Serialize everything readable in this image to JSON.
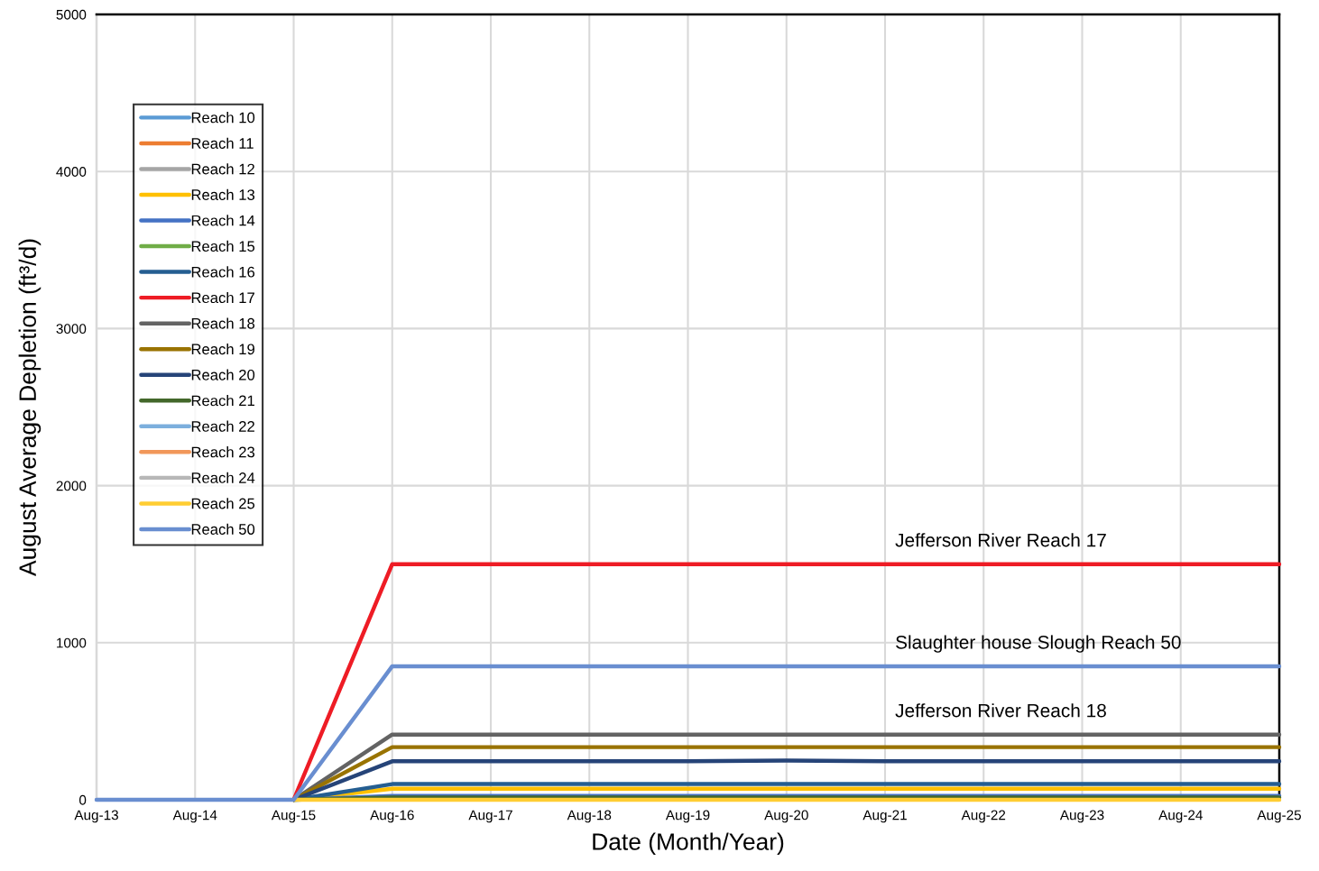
{
  "chart_data": {
    "type": "line",
    "xlabel": "Date (Month/Year)",
    "ylabel": "August Average Depletion (ft³/d)",
    "categories": [
      "Aug-13",
      "Aug-14",
      "Aug-15",
      "Aug-16",
      "Aug-17",
      "Aug-18",
      "Aug-19",
      "Aug-20",
      "Aug-21",
      "Aug-22",
      "Aug-23",
      "Aug-24",
      "Aug-25"
    ],
    "ylim": [
      0,
      5000
    ],
    "yticks": [
      0,
      1000,
      2000,
      3000,
      4000,
      5000
    ],
    "grid": true,
    "legend": "top left",
    "marker": "none",
    "line_style": "solid",
    "series": [
      {
        "name": "Reach 10",
        "color": "#5b9bd5",
        "values": [
          null,
          null,
          null,
          null,
          null,
          null,
          null,
          null,
          null,
          null,
          null,
          null,
          null
        ]
      },
      {
        "name": "Reach 11",
        "color": "#ed7d31",
        "values": [
          null,
          null,
          null,
          null,
          null,
          null,
          null,
          null,
          null,
          null,
          null,
          null,
          null
        ]
      },
      {
        "name": "Reach 12",
        "color": "#a5a5a5",
        "values": [
          null,
          null,
          null,
          null,
          null,
          null,
          null,
          null,
          null,
          null,
          null,
          null,
          null
        ]
      },
      {
        "name": "Reach 13",
        "color": "#ffc000",
        "values": [
          null,
          null,
          0,
          70,
          70,
          70,
          70,
          70,
          70,
          70,
          70,
          70,
          70
        ]
      },
      {
        "name": "Reach 14",
        "color": "#4472c4",
        "values": [
          null,
          null,
          0,
          25,
          25,
          25,
          25,
          25,
          25,
          25,
          25,
          25,
          25
        ]
      },
      {
        "name": "Reach 15",
        "color": "#70ad47",
        "values": [
          null,
          null,
          null,
          null,
          null,
          null,
          null,
          null,
          null,
          null,
          null,
          null,
          null
        ]
      },
      {
        "name": "Reach 16",
        "color": "#255e91",
        "values": [
          null,
          null,
          0,
          100,
          100,
          100,
          100,
          100,
          100,
          100,
          100,
          100,
          100
        ]
      },
      {
        "name": "Reach 17",
        "color": "#ee1c25",
        "values": [
          null,
          null,
          0,
          1500,
          1500,
          1500,
          1500,
          1500,
          1500,
          1500,
          1500,
          1500,
          1500
        ]
      },
      {
        "name": "Reach 18",
        "color": "#636363",
        "values": [
          null,
          null,
          0,
          415,
          415,
          415,
          415,
          415,
          415,
          415,
          415,
          415,
          415
        ]
      },
      {
        "name": "Reach 19",
        "color": "#997300",
        "values": [
          null,
          null,
          0,
          335,
          335,
          335,
          335,
          335,
          335,
          335,
          335,
          335,
          335
        ]
      },
      {
        "name": "Reach 20",
        "color": "#264478",
        "values": [
          null,
          null,
          0,
          245,
          245,
          245,
          245,
          250,
          245,
          245,
          245,
          245,
          245
        ]
      },
      {
        "name": "Reach 21",
        "color": "#43682b",
        "values": [
          null,
          null,
          0,
          15,
          15,
          15,
          15,
          15,
          15,
          15,
          15,
          15,
          15
        ]
      },
      {
        "name": "Reach 22",
        "color": "#7cafdd",
        "values": [
          null,
          null,
          null,
          null,
          null,
          null,
          null,
          null,
          null,
          null,
          null,
          null,
          null
        ]
      },
      {
        "name": "Reach 23",
        "color": "#f1975a",
        "values": [
          null,
          null,
          null,
          null,
          null,
          null,
          null,
          null,
          null,
          null,
          null,
          null,
          null
        ]
      },
      {
        "name": "Reach 24",
        "color": "#b7b7b7",
        "values": [
          null,
          null,
          null,
          null,
          null,
          null,
          null,
          null,
          null,
          null,
          null,
          null,
          null
        ]
      },
      {
        "name": "Reach 25",
        "color": "#ffcd33",
        "values": [
          null,
          null,
          0,
          0,
          0,
          0,
          0,
          0,
          0,
          0,
          0,
          0,
          0
        ]
      },
      {
        "name": "Reach 50",
        "color": "#698ed0",
        "values": [
          0,
          0,
          0,
          850,
          850,
          850,
          850,
          850,
          850,
          850,
          850,
          850,
          850
        ]
      }
    ],
    "annotations": [
      {
        "text": "Jefferson River Reach 17",
        "x": "Aug-21",
        "y": 1500
      },
      {
        "text": "Slaughter house Slough Reach 50",
        "x": "Aug-21",
        "y": 850
      },
      {
        "text": "Jefferson River Reach 18",
        "x": "Aug-21",
        "y": 415
      }
    ]
  }
}
